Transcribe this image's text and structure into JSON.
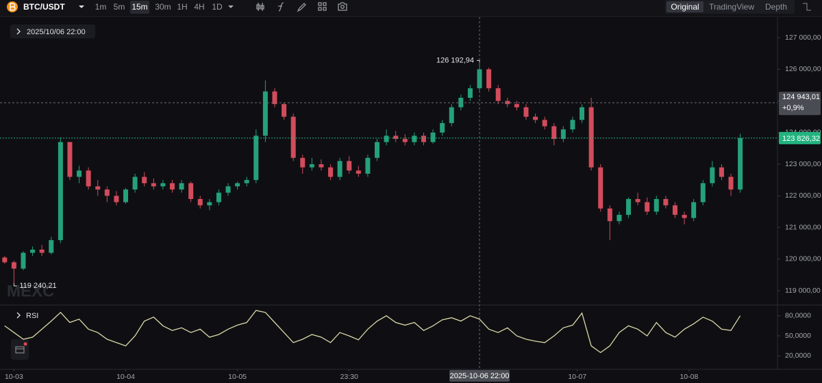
{
  "toolbar": {
    "symbol": "BTC/USDT",
    "intervals": [
      "1m",
      "5m",
      "15m",
      "30m",
      "1H",
      "4H",
      "1D"
    ],
    "active_interval": "15m",
    "views": [
      "Original",
      "TradingView",
      "Depth"
    ],
    "active_view": "Original"
  },
  "watermark": "MEXC",
  "chart_data": [
    {
      "type": "candlestick",
      "info_time": "2025/10/06 22:00",
      "up_color": "#25a17a",
      "down_color": "#d24c5c",
      "grid": false,
      "xlim": [
        -0.5,
        83
      ],
      "ylim": [
        118570,
        127650
      ],
      "yticks": [
        {
          "value": 119000,
          "label": "119 000,00"
        },
        {
          "value": 120000,
          "label": "120 000,00"
        },
        {
          "value": 121000,
          "label": "121 000,00"
        },
        {
          "value": 122000,
          "label": "122 000,00"
        },
        {
          "value": 123000,
          "label": "123 000,00"
        },
        {
          "value": 124000,
          "label": "124 000,00"
        },
        {
          "value": 125000,
          "label": "125 000,00"
        },
        {
          "value": 126000,
          "label": "126 000,00"
        },
        {
          "value": 127000,
          "label": "127 000,00"
        }
      ],
      "x": [
        0,
        1,
        2,
        3,
        4,
        5,
        6,
        7,
        8,
        9,
        10,
        11,
        12,
        13,
        14,
        15,
        16,
        17,
        18,
        19,
        20,
        21,
        22,
        23,
        24,
        25,
        26,
        27,
        28,
        29,
        30,
        31,
        32,
        33,
        34,
        35,
        36,
        37,
        38,
        39,
        40,
        41,
        42,
        43,
        44,
        45,
        46,
        47,
        48,
        49,
        50,
        51,
        52,
        53,
        54,
        55,
        56,
        57,
        58,
        59,
        60,
        61,
        62,
        63,
        64,
        65,
        66,
        67,
        68,
        69,
        70,
        71,
        72,
        73,
        74,
        75,
        76,
        77,
        78,
        79
      ],
      "open": [
        120050,
        119900,
        119700,
        120200,
        120300,
        120200,
        120600,
        123700,
        122600,
        122800,
        122300,
        122200,
        122000,
        121800,
        122200,
        122600,
        122400,
        122300,
        122400,
        122200,
        122400,
        121900,
        121700,
        121800,
        122100,
        122300,
        122400,
        122500,
        123900,
        125300,
        124900,
        124500,
        123200,
        122900,
        123000,
        122900,
        122600,
        123100,
        122800,
        122700,
        123200,
        123700,
        123900,
        123800,
        123700,
        123900,
        123700,
        124000,
        124300,
        124800,
        125100,
        125400,
        126000,
        125400,
        125000,
        124900,
        124800,
        124500,
        124400,
        124200,
        123800,
        124100,
        124400,
        124800,
        122900,
        121600,
        121200,
        121400,
        121900,
        121800,
        121500,
        121900,
        121700,
        121400,
        121300,
        121800,
        122400,
        122900,
        122600,
        122200
      ],
      "high": [
        120100,
        119950,
        120250,
        120400,
        120450,
        120700,
        123850,
        123700,
        122950,
        122900,
        122500,
        122300,
        122150,
        122250,
        122700,
        122750,
        122550,
        122500,
        122500,
        122500,
        122450,
        122000,
        121900,
        122200,
        122400,
        122450,
        122600,
        124100,
        125650,
        125400,
        124950,
        124600,
        123300,
        123200,
        123150,
        123000,
        123200,
        123250,
        122950,
        123300,
        123800,
        124100,
        124050,
        123950,
        124000,
        124000,
        124100,
        124400,
        124900,
        125200,
        125500,
        126192.94,
        126050,
        125500,
        125100,
        125000,
        124900,
        124600,
        124500,
        124300,
        124200,
        124500,
        124900,
        125100,
        123000,
        121700,
        121500,
        121950,
        122100,
        121950,
        122000,
        122000,
        121800,
        121500,
        121900,
        122500,
        123100,
        123000,
        122700,
        123960
      ],
      "low": [
        119850,
        119240,
        119650,
        120100,
        120100,
        120150,
        120500,
        122500,
        122400,
        122200,
        122000,
        121800,
        121700,
        121750,
        122100,
        122300,
        122200,
        122200,
        122100,
        122100,
        121800,
        121600,
        121550,
        121700,
        122000,
        122200,
        122300,
        122400,
        123700,
        124800,
        124400,
        123100,
        122700,
        122800,
        122800,
        122500,
        122500,
        122700,
        122600,
        122600,
        123100,
        123600,
        123700,
        123600,
        123600,
        123600,
        123650,
        123900,
        124200,
        124700,
        125000,
        125300,
        125300,
        124900,
        124800,
        124700,
        124400,
        124300,
        124100,
        123600,
        123700,
        124000,
        124300,
        122800,
        121500,
        120600,
        121100,
        121300,
        121700,
        121400,
        121400,
        121600,
        121300,
        121100,
        121200,
        121700,
        122300,
        122500,
        122000,
        122100
      ],
      "close": [
        119900,
        119700,
        120200,
        120300,
        120200,
        120600,
        123700,
        122600,
        122800,
        122300,
        122200,
        122000,
        121800,
        122200,
        122600,
        122400,
        122300,
        122400,
        122200,
        122400,
        121900,
        121700,
        121800,
        122100,
        122300,
        122400,
        122500,
        123900,
        125300,
        124900,
        124500,
        123200,
        122900,
        123000,
        122900,
        122600,
        123100,
        122800,
        122700,
        123200,
        123700,
        123900,
        123800,
        123700,
        123900,
        123700,
        124000,
        124300,
        124800,
        125100,
        125400,
        126000,
        125400,
        125000,
        124900,
        124800,
        124500,
        124400,
        124200,
        123800,
        124100,
        124400,
        124800,
        122900,
        121600,
        121200,
        121400,
        121900,
        121800,
        121500,
        121900,
        121700,
        121400,
        121300,
        121800,
        122400,
        122900,
        122600,
        122200,
        123826.32
      ],
      "high_marker": {
        "x": 51,
        "value": 126192.94,
        "label": "126 192,94"
      },
      "low_marker": {
        "x": 1,
        "value": 119240.21,
        "label": "119 240,21"
      },
      "last_price": {
        "value": 123826.32,
        "label": "123 826,32",
        "color": "#22b37f"
      },
      "crosshair": {
        "x": 51,
        "y": 124943.01,
        "y_label": "124 943,01",
        "change": {
          "value": 0.9,
          "label": "+0,9%"
        },
        "x_label": "2025-10-06 22:00"
      }
    },
    {
      "type": "line",
      "title": "RSI",
      "color": "#dcd9a8",
      "xlim": [
        -0.5,
        83
      ],
      "ylim": [
        0,
        94
      ],
      "yticks": [
        {
          "value": 20,
          "label": "20,0000"
        },
        {
          "value": 50,
          "label": "50,0000"
        },
        {
          "value": 80,
          "label": "80,0000"
        }
      ],
      "xticks": [
        {
          "value": 1,
          "label": "10-03"
        },
        {
          "value": 13,
          "label": "10-04"
        },
        {
          "value": 25,
          "label": "10-05"
        },
        {
          "value": 37,
          "label": "23:30"
        },
        {
          "value": 61.5,
          "label": "10-07"
        },
        {
          "value": 73.5,
          "label": "10-08"
        }
      ],
      "values": [
        65,
        55,
        45,
        48,
        60,
        72,
        85,
        70,
        75,
        60,
        55,
        45,
        40,
        35,
        50,
        72,
        78,
        65,
        58,
        62,
        55,
        60,
        48,
        52,
        60,
        66,
        70,
        88,
        85,
        70,
        55,
        40,
        45,
        52,
        48,
        40,
        55,
        50,
        44,
        60,
        72,
        80,
        70,
        66,
        70,
        58,
        65,
        74,
        77,
        72,
        80,
        75,
        60,
        55,
        62,
        50,
        45,
        42,
        40,
        50,
        62,
        66,
        84,
        35,
        25,
        35,
        55,
        65,
        60,
        50,
        70,
        55,
        48,
        60,
        68,
        78,
        72,
        60,
        58,
        80
      ]
    }
  ]
}
